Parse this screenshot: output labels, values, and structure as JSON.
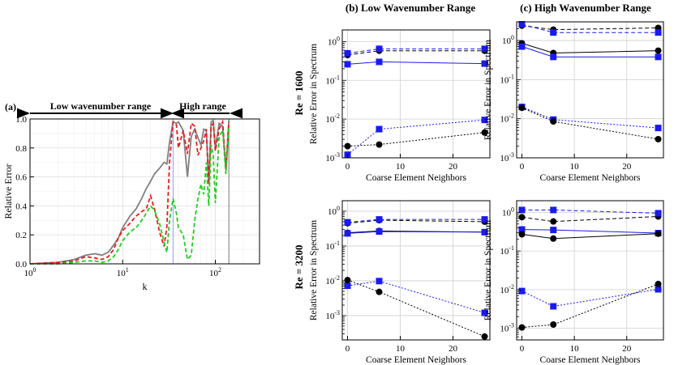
{
  "figure": {
    "panel_a_label": "(a)",
    "panel_b_title": "(b) Low Wavenumber Range",
    "panel_c_title": "(c) High Wavenumber Range",
    "row1_label": "Re = 1600",
    "row2_label": "Re = 3200",
    "low_range_label": "Low wavenumber range",
    "high_range_label": "High range"
  },
  "chart_data": [
    {
      "panel": "a",
      "type": "line",
      "xlabel": "k",
      "ylabel": "Relative Error",
      "xscale": "log",
      "xlim": [
        1,
        300
      ],
      "ylim": [
        0,
        1.0
      ],
      "xticks": [
        "10^0",
        "10^1",
        "10^2"
      ],
      "yticks": [
        "0.0",
        "0.2",
        "0.4",
        "0.6",
        "0.8",
        "1.0"
      ],
      "vlines": [
        35,
        140
      ],
      "grid": true,
      "series": [
        {
          "color": "#808080",
          "dash": "solid",
          "x": [
            1,
            2,
            3,
            4,
            5,
            6,
            7,
            8,
            9,
            10,
            12,
            14,
            16,
            18,
            20,
            22,
            25,
            28,
            30,
            32,
            35,
            38,
            40,
            45,
            50,
            55,
            60,
            65,
            70,
            75,
            80,
            85,
            90,
            95,
            100,
            110,
            120,
            130,
            140
          ],
          "y": [
            0.0,
            0.01,
            0.03,
            0.06,
            0.07,
            0.06,
            0.08,
            0.13,
            0.18,
            0.25,
            0.33,
            0.38,
            0.45,
            0.52,
            0.57,
            0.62,
            0.66,
            0.7,
            0.69,
            0.84,
            0.98,
            0.97,
            0.98,
            0.92,
            0.6,
            0.88,
            0.93,
            0.87,
            0.82,
            0.93,
            0.92,
            0.55,
            0.98,
            0.99,
            0.8,
            0.97,
            0.95,
            0.65,
            0.99
          ]
        },
        {
          "color": "#e02020",
          "dash": "dashed",
          "x": [
            1,
            2,
            3,
            4,
            5,
            6,
            7,
            8,
            9,
            10,
            12,
            14,
            16,
            18,
            20,
            22,
            25,
            28,
            30,
            32,
            35,
            38,
            40,
            45,
            50,
            55,
            60,
            65,
            70,
            75,
            80,
            85,
            90,
            95,
            100,
            110,
            120,
            130,
            140
          ],
          "y": [
            0.0,
            0.01,
            0.02,
            0.05,
            0.04,
            0.03,
            0.05,
            0.1,
            0.18,
            0.23,
            0.28,
            0.33,
            0.36,
            0.38,
            0.47,
            0.38,
            0.22,
            0.12,
            0.26,
            0.7,
            0.98,
            0.96,
            0.8,
            0.92,
            0.76,
            0.97,
            0.95,
            0.75,
            0.8,
            0.85,
            0.93,
            0.55,
            0.95,
            0.97,
            0.78,
            0.93,
            0.98,
            0.65,
            0.98
          ]
        },
        {
          "color": "#22cc22",
          "dash": "dashed",
          "x": [
            1,
            2,
            3,
            4,
            5,
            6,
            7,
            8,
            9,
            10,
            12,
            14,
            16,
            18,
            20,
            22,
            25,
            28,
            30,
            32,
            35,
            38,
            40,
            45,
            50,
            55,
            60,
            65,
            70,
            75,
            80,
            85,
            90,
            95,
            100,
            110,
            120,
            130,
            140
          ],
          "y": [
            0.0,
            0.0,
            0.01,
            0.02,
            0.02,
            0.01,
            0.02,
            0.05,
            0.1,
            0.16,
            0.22,
            0.25,
            0.3,
            0.35,
            0.4,
            0.37,
            0.28,
            0.15,
            0.08,
            0.3,
            0.45,
            0.35,
            0.25,
            0.2,
            0.03,
            0.06,
            0.3,
            0.45,
            0.55,
            0.48,
            0.7,
            0.4,
            0.82,
            0.75,
            0.42,
            0.88,
            0.92,
            0.62,
            0.95
          ]
        }
      ]
    },
    {
      "panel": "b-top",
      "type": "line",
      "xlabel": "Coarse Element Neighbors",
      "ylabel": "Relative Error in Spectrum",
      "yscale": "log",
      "ylim": [
        0.001,
        2
      ],
      "xlim": [
        -1,
        27
      ],
      "xticks": [
        "0",
        "10",
        "20"
      ],
      "yticks": [
        "10^-3",
        "10^-2",
        "10^-1",
        "10^0"
      ],
      "series": [
        {
          "color": "#000000",
          "marker": "circle",
          "dash": "dashed",
          "x": [
            0,
            6,
            26
          ],
          "y": [
            0.45,
            0.58,
            0.58
          ]
        },
        {
          "color": "#1a1aee",
          "marker": "square",
          "dash": "dashed",
          "x": [
            0,
            6,
            26
          ],
          "y": [
            0.5,
            0.65,
            0.65
          ]
        },
        {
          "color": "#1a1aee",
          "marker": "square",
          "dash": "solid",
          "x": [
            0,
            6,
            26
          ],
          "y": [
            0.26,
            0.3,
            0.27
          ]
        },
        {
          "color": "#1a1aee",
          "marker": "square",
          "dash": "dotted",
          "x": [
            0,
            6,
            26
          ],
          "y": [
            0.0012,
            0.0055,
            0.0095
          ]
        },
        {
          "color": "#000000",
          "marker": "circle",
          "dash": "dotted",
          "x": [
            0,
            6,
            26
          ],
          "y": [
            0.002,
            0.0022,
            0.0045
          ]
        }
      ]
    },
    {
      "panel": "c-top",
      "type": "line",
      "xlabel": "Coarse Element Neighbors",
      "ylabel": "Relative Error in Spectrum",
      "yscale": "log",
      "ylim": [
        0.001,
        3
      ],
      "xlim": [
        -1,
        27
      ],
      "xticks": [
        "0",
        "10",
        "20"
      ],
      "yticks": [
        "10^-3",
        "10^-2",
        "10^-1",
        "10^0"
      ],
      "series": [
        {
          "color": "#000000",
          "marker": "circle",
          "dash": "dashed",
          "x": [
            0,
            6,
            26
          ],
          "y": [
            2.4,
            1.9,
            2.1
          ]
        },
        {
          "color": "#1a1aee",
          "marker": "square",
          "dash": "dashed",
          "x": [
            0,
            6,
            26
          ],
          "y": [
            2.6,
            1.6,
            1.6
          ]
        },
        {
          "color": "#000000",
          "marker": "circle",
          "dash": "solid",
          "x": [
            0,
            6,
            26
          ],
          "y": [
            0.85,
            0.48,
            0.55
          ]
        },
        {
          "color": "#1a1aee",
          "marker": "square",
          "dash": "solid",
          "x": [
            0,
            6,
            26
          ],
          "y": [
            0.7,
            0.38,
            0.38
          ]
        },
        {
          "color": "#1a1aee",
          "marker": "square",
          "dash": "dotted",
          "x": [
            0,
            6,
            26
          ],
          "y": [
            0.02,
            0.0095,
            0.0058
          ]
        },
        {
          "color": "#000000",
          "marker": "circle",
          "dash": "dotted",
          "x": [
            0,
            6,
            26
          ],
          "y": [
            0.019,
            0.0085,
            0.003
          ]
        }
      ]
    },
    {
      "panel": "b-bottom",
      "type": "line",
      "xlabel": "Coarse Element Neighbors",
      "ylabel": "Relative Error in Spectrum",
      "yscale": "log",
      "ylim": [
        0.0002,
        2
      ],
      "xlim": [
        -1,
        27
      ],
      "xticks": [
        "0",
        "10",
        "20"
      ],
      "yticks": [
        "10^-3",
        "10^-2",
        "10^-1",
        "10^0"
      ],
      "series": [
        {
          "color": "#000000",
          "marker": "circle",
          "dash": "dashed",
          "x": [
            0,
            6,
            26
          ],
          "y": [
            0.45,
            0.55,
            0.5
          ]
        },
        {
          "color": "#1a1aee",
          "marker": "square",
          "dash": "dashed",
          "x": [
            0,
            6,
            26
          ],
          "y": [
            0.48,
            0.58,
            0.58
          ]
        },
        {
          "color": "#000000",
          "marker": "circle",
          "dash": "solid",
          "x": [
            0,
            6,
            26
          ],
          "y": [
            0.24,
            0.27,
            0.25
          ]
        },
        {
          "color": "#1a1aee",
          "marker": "square",
          "dash": "solid",
          "x": [
            0,
            6,
            26
          ],
          "y": [
            0.23,
            0.26,
            0.25
          ]
        },
        {
          "color": "#1a1aee",
          "marker": "square",
          "dash": "dotted",
          "x": [
            0,
            6,
            26
          ],
          "y": [
            0.0072,
            0.0098,
            0.0012
          ]
        },
        {
          "color": "#000000",
          "marker": "circle",
          "dash": "dotted",
          "x": [
            0,
            6,
            26
          ],
          "y": [
            0.0105,
            0.0048,
            0.00025
          ]
        }
      ]
    },
    {
      "panel": "c-bottom",
      "type": "line",
      "xlabel": "Coarse Element Neighbors",
      "ylabel": "Relative Error in Spectrum",
      "yscale": "log",
      "ylim": [
        0.0005,
        2
      ],
      "xlim": [
        -1,
        27
      ],
      "xticks": [
        "0",
        "10",
        "20"
      ],
      "yticks": [
        "10^-3",
        "10^-2",
        "10^-1",
        "10^0"
      ],
      "series": [
        {
          "color": "#000000",
          "marker": "circle",
          "dash": "dashed",
          "x": [
            0,
            6,
            26
          ],
          "y": [
            0.75,
            0.58,
            0.78
          ]
        },
        {
          "color": "#1a1aee",
          "marker": "square",
          "dash": "dashed",
          "x": [
            0,
            6,
            26
          ],
          "y": [
            1.15,
            1.15,
            0.95
          ]
        },
        {
          "color": "#1a1aee",
          "marker": "square",
          "dash": "solid",
          "x": [
            0,
            6,
            26
          ],
          "y": [
            0.36,
            0.35,
            0.29
          ]
        },
        {
          "color": "#000000",
          "marker": "circle",
          "dash": "solid",
          "x": [
            0,
            6,
            26
          ],
          "y": [
            0.27,
            0.21,
            0.28
          ]
        },
        {
          "color": "#1a1aee",
          "marker": "square",
          "dash": "dotted",
          "x": [
            0,
            6,
            26
          ],
          "y": [
            0.0092,
            0.0037,
            0.0102
          ]
        },
        {
          "color": "#000000",
          "marker": "circle",
          "dash": "dotted",
          "x": [
            0,
            6,
            26
          ],
          "y": [
            0.00105,
            0.00125,
            0.014
          ]
        }
      ]
    }
  ]
}
